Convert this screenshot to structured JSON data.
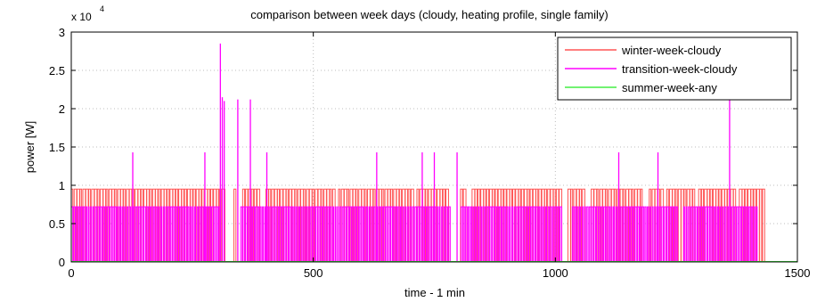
{
  "chart_data": {
    "type": "line",
    "title": "comparison between week days (cloudy, heating profile, single family)",
    "xlabel": "time - 1 min",
    "ylabel": "power [W]",
    "y_multiplier": "x 10",
    "y_multiplier_exp": "4",
    "xlim": [
      0,
      1500
    ],
    "ylim": [
      0,
      30000
    ],
    "x_ticks": [
      0,
      500,
      1000,
      1500
    ],
    "x_tick_labels": [
      "0",
      "500",
      "1000",
      "1500"
    ],
    "y_ticks": [
      0,
      5000,
      10000,
      15000,
      20000,
      25000,
      30000
    ],
    "y_tick_labels": [
      "0",
      "0.5",
      "1",
      "1.5",
      "2",
      "2.5",
      "3"
    ],
    "grid": true,
    "legend_position": "top-right",
    "series": [
      {
        "name": "winter-week-cloudy",
        "color": "#ff5555",
        "level": 9500,
        "active_until": 1432,
        "off_segments": [
          [
            316,
            330
          ],
          [
            341,
            348
          ],
          [
            388,
            396
          ],
          [
            545,
            550
          ],
          [
            708,
            712
          ],
          [
            780,
            800
          ],
          [
            815,
            825
          ],
          [
            1012,
            1022
          ],
          [
            1060,
            1068
          ],
          [
            1180,
            1190
          ],
          [
            1220,
            1226
          ],
          [
            1290,
            1295
          ],
          [
            1372,
            1378
          ]
        ]
      },
      {
        "name": "transition-week-cloudy",
        "color": "#ff00ff",
        "level": 7200,
        "active_until": 1420,
        "off_segments": [
          [
            310,
            345
          ],
          [
            785,
            800
          ],
          [
            1015,
            1030
          ],
          [
            1255,
            1262
          ]
        ],
        "spikes": [
          {
            "x": 127,
            "y": 14300
          },
          {
            "x": 276,
            "y": 14300
          },
          {
            "x": 308,
            "y": 28500
          },
          {
            "x": 312,
            "y": 21500
          },
          {
            "x": 316,
            "y": 21000
          },
          {
            "x": 344,
            "y": 21200
          },
          {
            "x": 370,
            "y": 21200
          },
          {
            "x": 404,
            "y": 14300
          },
          {
            "x": 631,
            "y": 14300
          },
          {
            "x": 725,
            "y": 14300
          },
          {
            "x": 750,
            "y": 14300
          },
          {
            "x": 797,
            "y": 14300
          },
          {
            "x": 1131,
            "y": 14300
          },
          {
            "x": 1212,
            "y": 14300
          },
          {
            "x": 1360,
            "y": 21200
          }
        ]
      },
      {
        "name": "summer-week-any",
        "color": "#44ee44",
        "level": 0
      }
    ]
  }
}
